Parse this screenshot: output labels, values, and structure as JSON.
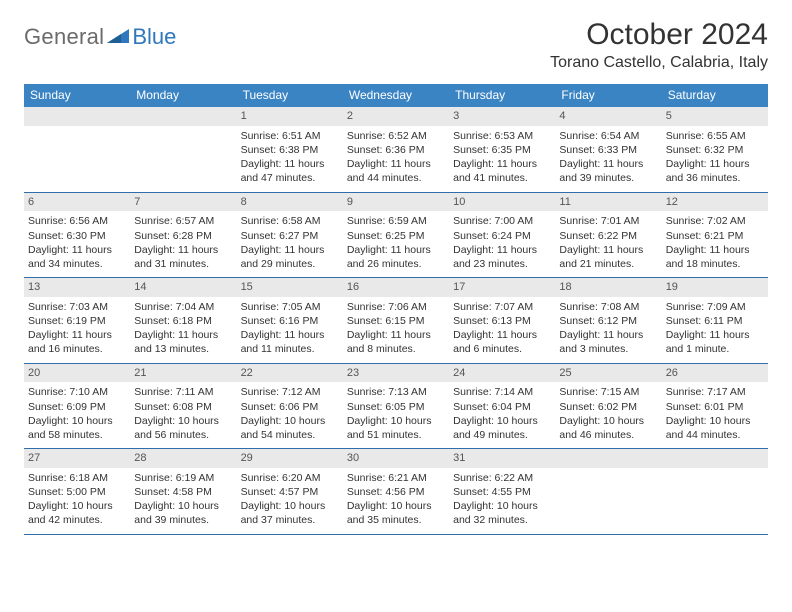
{
  "logo": {
    "general": "General",
    "blue": "Blue"
  },
  "title": "October 2024",
  "location": "Torano Castello, Calabria, Italy",
  "colors": {
    "header_bg": "#3b84c4",
    "header_text": "#ffffff",
    "daynum_bg": "#e9e9e9",
    "daynum_text": "#555555",
    "row_border": "#2f6fa8",
    "body_text": "#333333",
    "logo_general": "#6b6b6b",
    "logo_blue": "#2f78bd"
  },
  "weekdays": [
    "Sunday",
    "Monday",
    "Tuesday",
    "Wednesday",
    "Thursday",
    "Friday",
    "Saturday"
  ],
  "weeks": [
    [
      {
        "day": "",
        "lines": []
      },
      {
        "day": "",
        "lines": []
      },
      {
        "day": "1",
        "lines": [
          "Sunrise: 6:51 AM",
          "Sunset: 6:38 PM",
          "Daylight: 11 hours",
          "and 47 minutes."
        ]
      },
      {
        "day": "2",
        "lines": [
          "Sunrise: 6:52 AM",
          "Sunset: 6:36 PM",
          "Daylight: 11 hours",
          "and 44 minutes."
        ]
      },
      {
        "day": "3",
        "lines": [
          "Sunrise: 6:53 AM",
          "Sunset: 6:35 PM",
          "Daylight: 11 hours",
          "and 41 minutes."
        ]
      },
      {
        "day": "4",
        "lines": [
          "Sunrise: 6:54 AM",
          "Sunset: 6:33 PM",
          "Daylight: 11 hours",
          "and 39 minutes."
        ]
      },
      {
        "day": "5",
        "lines": [
          "Sunrise: 6:55 AM",
          "Sunset: 6:32 PM",
          "Daylight: 11 hours",
          "and 36 minutes."
        ]
      }
    ],
    [
      {
        "day": "6",
        "lines": [
          "Sunrise: 6:56 AM",
          "Sunset: 6:30 PM",
          "Daylight: 11 hours",
          "and 34 minutes."
        ]
      },
      {
        "day": "7",
        "lines": [
          "Sunrise: 6:57 AM",
          "Sunset: 6:28 PM",
          "Daylight: 11 hours",
          "and 31 minutes."
        ]
      },
      {
        "day": "8",
        "lines": [
          "Sunrise: 6:58 AM",
          "Sunset: 6:27 PM",
          "Daylight: 11 hours",
          "and 29 minutes."
        ]
      },
      {
        "day": "9",
        "lines": [
          "Sunrise: 6:59 AM",
          "Sunset: 6:25 PM",
          "Daylight: 11 hours",
          "and 26 minutes."
        ]
      },
      {
        "day": "10",
        "lines": [
          "Sunrise: 7:00 AM",
          "Sunset: 6:24 PM",
          "Daylight: 11 hours",
          "and 23 minutes."
        ]
      },
      {
        "day": "11",
        "lines": [
          "Sunrise: 7:01 AM",
          "Sunset: 6:22 PM",
          "Daylight: 11 hours",
          "and 21 minutes."
        ]
      },
      {
        "day": "12",
        "lines": [
          "Sunrise: 7:02 AM",
          "Sunset: 6:21 PM",
          "Daylight: 11 hours",
          "and 18 minutes."
        ]
      }
    ],
    [
      {
        "day": "13",
        "lines": [
          "Sunrise: 7:03 AM",
          "Sunset: 6:19 PM",
          "Daylight: 11 hours",
          "and 16 minutes."
        ]
      },
      {
        "day": "14",
        "lines": [
          "Sunrise: 7:04 AM",
          "Sunset: 6:18 PM",
          "Daylight: 11 hours",
          "and 13 minutes."
        ]
      },
      {
        "day": "15",
        "lines": [
          "Sunrise: 7:05 AM",
          "Sunset: 6:16 PM",
          "Daylight: 11 hours",
          "and 11 minutes."
        ]
      },
      {
        "day": "16",
        "lines": [
          "Sunrise: 7:06 AM",
          "Sunset: 6:15 PM",
          "Daylight: 11 hours",
          "and 8 minutes."
        ]
      },
      {
        "day": "17",
        "lines": [
          "Sunrise: 7:07 AM",
          "Sunset: 6:13 PM",
          "Daylight: 11 hours",
          "and 6 minutes."
        ]
      },
      {
        "day": "18",
        "lines": [
          "Sunrise: 7:08 AM",
          "Sunset: 6:12 PM",
          "Daylight: 11 hours",
          "and 3 minutes."
        ]
      },
      {
        "day": "19",
        "lines": [
          "Sunrise: 7:09 AM",
          "Sunset: 6:11 PM",
          "Daylight: 11 hours",
          "and 1 minute."
        ]
      }
    ],
    [
      {
        "day": "20",
        "lines": [
          "Sunrise: 7:10 AM",
          "Sunset: 6:09 PM",
          "Daylight: 10 hours",
          "and 58 minutes."
        ]
      },
      {
        "day": "21",
        "lines": [
          "Sunrise: 7:11 AM",
          "Sunset: 6:08 PM",
          "Daylight: 10 hours",
          "and 56 minutes."
        ]
      },
      {
        "day": "22",
        "lines": [
          "Sunrise: 7:12 AM",
          "Sunset: 6:06 PM",
          "Daylight: 10 hours",
          "and 54 minutes."
        ]
      },
      {
        "day": "23",
        "lines": [
          "Sunrise: 7:13 AM",
          "Sunset: 6:05 PM",
          "Daylight: 10 hours",
          "and 51 minutes."
        ]
      },
      {
        "day": "24",
        "lines": [
          "Sunrise: 7:14 AM",
          "Sunset: 6:04 PM",
          "Daylight: 10 hours",
          "and 49 minutes."
        ]
      },
      {
        "day": "25",
        "lines": [
          "Sunrise: 7:15 AM",
          "Sunset: 6:02 PM",
          "Daylight: 10 hours",
          "and 46 minutes."
        ]
      },
      {
        "day": "26",
        "lines": [
          "Sunrise: 7:17 AM",
          "Sunset: 6:01 PM",
          "Daylight: 10 hours",
          "and 44 minutes."
        ]
      }
    ],
    [
      {
        "day": "27",
        "lines": [
          "Sunrise: 6:18 AM",
          "Sunset: 5:00 PM",
          "Daylight: 10 hours",
          "and 42 minutes."
        ]
      },
      {
        "day": "28",
        "lines": [
          "Sunrise: 6:19 AM",
          "Sunset: 4:58 PM",
          "Daylight: 10 hours",
          "and 39 minutes."
        ]
      },
      {
        "day": "29",
        "lines": [
          "Sunrise: 6:20 AM",
          "Sunset: 4:57 PM",
          "Daylight: 10 hours",
          "and 37 minutes."
        ]
      },
      {
        "day": "30",
        "lines": [
          "Sunrise: 6:21 AM",
          "Sunset: 4:56 PM",
          "Daylight: 10 hours",
          "and 35 minutes."
        ]
      },
      {
        "day": "31",
        "lines": [
          "Sunrise: 6:22 AM",
          "Sunset: 4:55 PM",
          "Daylight: 10 hours",
          "and 32 minutes."
        ]
      },
      {
        "day": "",
        "lines": []
      },
      {
        "day": "",
        "lines": []
      }
    ]
  ]
}
